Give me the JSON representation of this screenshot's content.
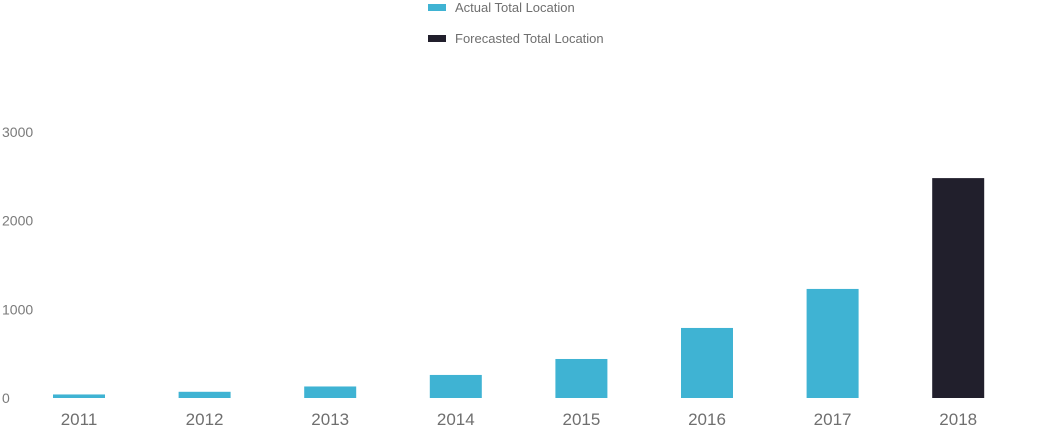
{
  "chart_data": {
    "type": "bar",
    "title": "",
    "xlabel": "",
    "ylabel": "",
    "categories": [
      "2011",
      "2012",
      "2013",
      "2014",
      "2015",
      "2016",
      "2017",
      "2018"
    ],
    "series": [
      {
        "name": "Actual Total Location",
        "color": "#3fb3d3",
        "values": [
          40,
          70,
          130,
          260,
          440,
          790,
          1230,
          null
        ]
      },
      {
        "name": "Forecasted Total Location",
        "color": "#211f2c",
        "values": [
          null,
          null,
          null,
          null,
          null,
          null,
          null,
          2480
        ]
      }
    ],
    "ylim": [
      0,
      3000
    ],
    "yticks": [
      "0",
      "1000",
      "2000",
      "3000"
    ],
    "grid": false,
    "legend_position": "top-center"
  }
}
